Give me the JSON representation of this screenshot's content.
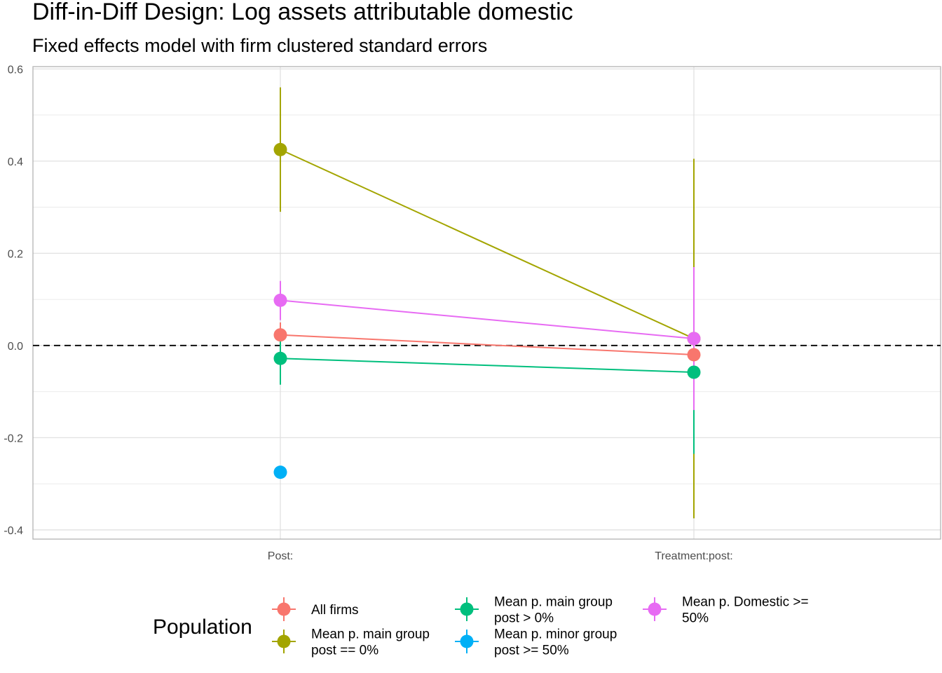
{
  "chart_data": {
    "type": "scatter",
    "title": "Diff-in-Diff Design: Log assets attributable domestic",
    "subtitle": "Fixed effects model with firm clustered standard errors",
    "xlabel": "",
    "ylabel": "",
    "categories": [
      "Post:",
      "Treatment:post:"
    ],
    "ylim": [
      -0.42,
      0.605
    ],
    "y_ticks": [
      "0.6",
      "0.4",
      "0.2",
      "0.0",
      "-0.2",
      "-0.4"
    ],
    "reference_line": {
      "y": 0,
      "style": "dashed"
    },
    "grid": true,
    "legend_title": "Population",
    "legend_position": "bottom",
    "series": [
      {
        "name": [
          "All firms"
        ],
        "color": "#F8766D",
        "points": [
          {
            "x": "Post:",
            "y": 0.023,
            "ymin": -0.005,
            "ymax": 0.05
          },
          {
            "x": "Treatment:post:",
            "y": -0.02,
            "ymin": -0.08,
            "ymax": 0.04
          }
        ]
      },
      {
        "name": [
          "Mean p. main group",
          "post == 0%"
        ],
        "color": "#A3A500",
        "points": [
          {
            "x": "Post:",
            "y": 0.425,
            "ymin": 0.29,
            "ymax": 0.56
          },
          {
            "x": "Treatment:post:",
            "y": 0.015,
            "ymin": -0.375,
            "ymax": 0.405
          }
        ]
      },
      {
        "name": [
          "Mean p. main group",
          "post > 0%"
        ],
        "color": "#00BF7D",
        "points": [
          {
            "x": "Post:",
            "y": -0.028,
            "ymin": -0.085,
            "ymax": 0.03
          },
          {
            "x": "Treatment:post:",
            "y": -0.058,
            "ymin": -0.235,
            "ymax": 0.12
          }
        ]
      },
      {
        "name": [
          "Mean p. minor group",
          "post >= 50%"
        ],
        "color": "#00B0F6",
        "points": [
          {
            "x": "Post:",
            "y": -0.275,
            "ymin": -0.275,
            "ymax": -0.275
          }
        ]
      },
      {
        "name": [
          "Mean p. Domestic >=",
          "50%"
        ],
        "color": "#E76BF3",
        "points": [
          {
            "x": "Post:",
            "y": 0.098,
            "ymin": 0.055,
            "ymax": 0.14
          },
          {
            "x": "Treatment:post:",
            "y": 0.015,
            "ymin": -0.14,
            "ymax": 0.17
          }
        ]
      }
    ]
  }
}
